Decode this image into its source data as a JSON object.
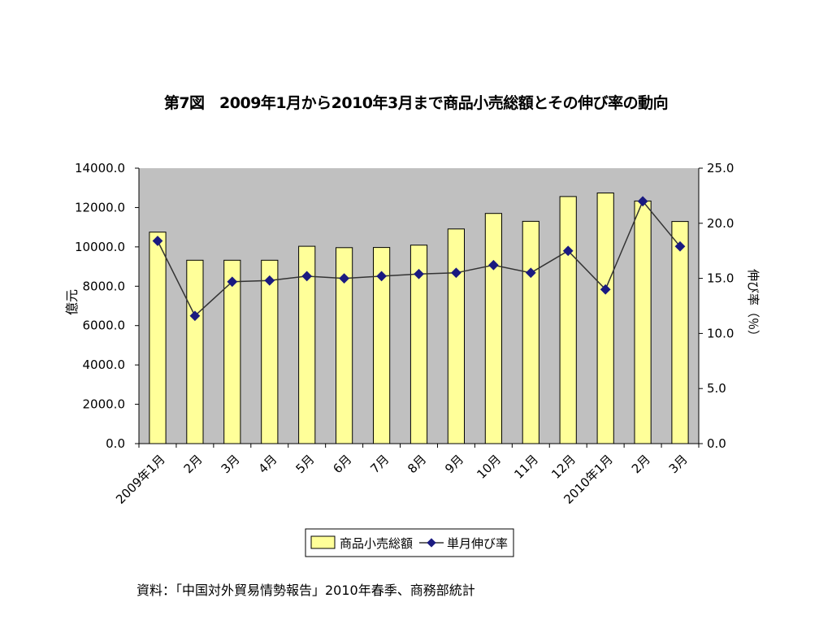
{
  "source_note": "資料：「中国対外貿易情勢報告」2010年春季、商務部統計",
  "chart_data": {
    "type": "bar",
    "title": "第7図　2009年1月から2010年3月まで商品小売総額とその伸び率の動向",
    "categories": [
      "2009年1月",
      "2月",
      "3月",
      "4月",
      "5月",
      "6月",
      "7月",
      "8月",
      "9月",
      "10月",
      "11月",
      "12月",
      "2010年1月",
      "2月",
      "3月"
    ],
    "series": [
      {
        "name": "商品小売総額",
        "type": "bar",
        "axis": "left",
        "color": "#ffff99",
        "values": [
          10750,
          9320,
          9320,
          9320,
          10030,
          9960,
          9970,
          10090,
          10910,
          11700,
          11300,
          12560,
          12740,
          12330,
          11290
        ]
      },
      {
        "name": "単月伸び率",
        "type": "line",
        "axis": "right",
        "color": "#333333",
        "marker_color": "#1a1a80",
        "values": [
          18.4,
          11.6,
          14.7,
          14.8,
          15.2,
          15.0,
          15.2,
          15.4,
          15.5,
          16.2,
          15.5,
          17.5,
          14.0,
          22.0,
          17.9
        ]
      }
    ],
    "ylabel": "億元",
    "ylim": [
      0,
      14000
    ],
    "yticks": [
      "0.0",
      "2000.0",
      "4000.0",
      "6000.0",
      "8000.0",
      "10000.0",
      "12000.0",
      "14000.0"
    ],
    "y2label": "伸び率（％）",
    "y2lim": [
      0,
      25
    ],
    "y2ticks": [
      "0.0",
      "5.0",
      "10.0",
      "15.0",
      "20.0",
      "25.0"
    ],
    "plot_background": "#c0c0c0",
    "grid": false,
    "legend_position": "bottom"
  }
}
